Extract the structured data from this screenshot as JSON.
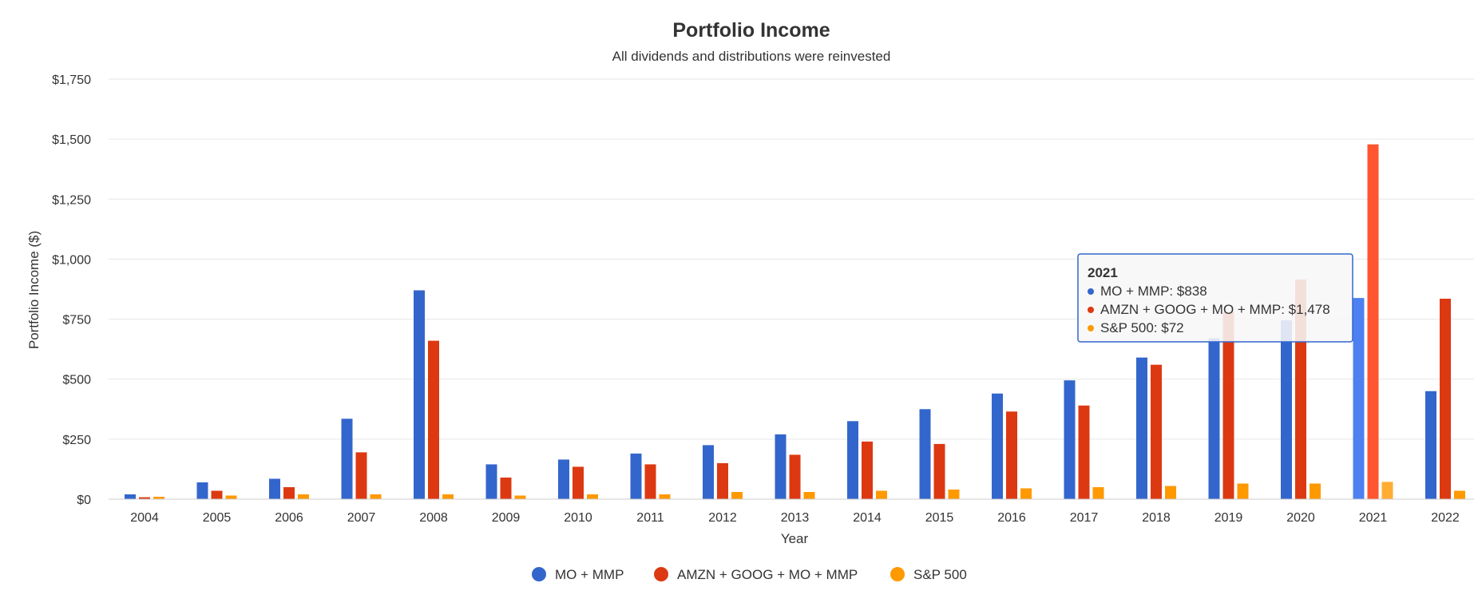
{
  "chart_data": {
    "type": "bar",
    "title": "Portfolio Income",
    "subtitle": "All dividends and distributions were reinvested",
    "xlabel": "Year",
    "ylabel": "Portfolio Income ($)",
    "ylim": [
      0,
      1750
    ],
    "yticks": [
      0,
      250,
      500,
      750,
      1000,
      1250,
      1500,
      1750
    ],
    "ytick_labels": [
      "$0",
      "$250",
      "$500",
      "$750",
      "$1,000",
      "$1,250",
      "$1,500",
      "$1,750"
    ],
    "grid": true,
    "legend": "bottom",
    "categories": [
      "2004",
      "2005",
      "2006",
      "2007",
      "2008",
      "2009",
      "2010",
      "2011",
      "2012",
      "2013",
      "2014",
      "2015",
      "2016",
      "2017",
      "2018",
      "2019",
      "2020",
      "2021",
      "2022"
    ],
    "series": [
      {
        "name": "MO + MMP",
        "color": "#3366cc",
        "values": [
          20,
          70,
          85,
          335,
          870,
          145,
          165,
          190,
          225,
          270,
          325,
          375,
          440,
          495,
          590,
          670,
          745,
          838,
          450
        ]
      },
      {
        "name": "AMZN + GOOG + MO + MMP",
        "color": "#dc3912",
        "values": [
          8,
          35,
          50,
          195,
          660,
          90,
          135,
          145,
          150,
          185,
          240,
          230,
          365,
          390,
          560,
          780,
          915,
          1478,
          835
        ]
      },
      {
        "name": "S&P 500",
        "color": "#ff9900",
        "values": [
          10,
          15,
          20,
          20,
          20,
          15,
          20,
          20,
          30,
          30,
          35,
          40,
          45,
          50,
          55,
          65,
          65,
          72,
          35
        ]
      }
    ],
    "tooltip": {
      "title": "2021",
      "lines": [
        "MO + MMP: $838",
        "AMZN + GOOG + MO + MMP: $1,478",
        "S&P 500: $72"
      ]
    }
  }
}
